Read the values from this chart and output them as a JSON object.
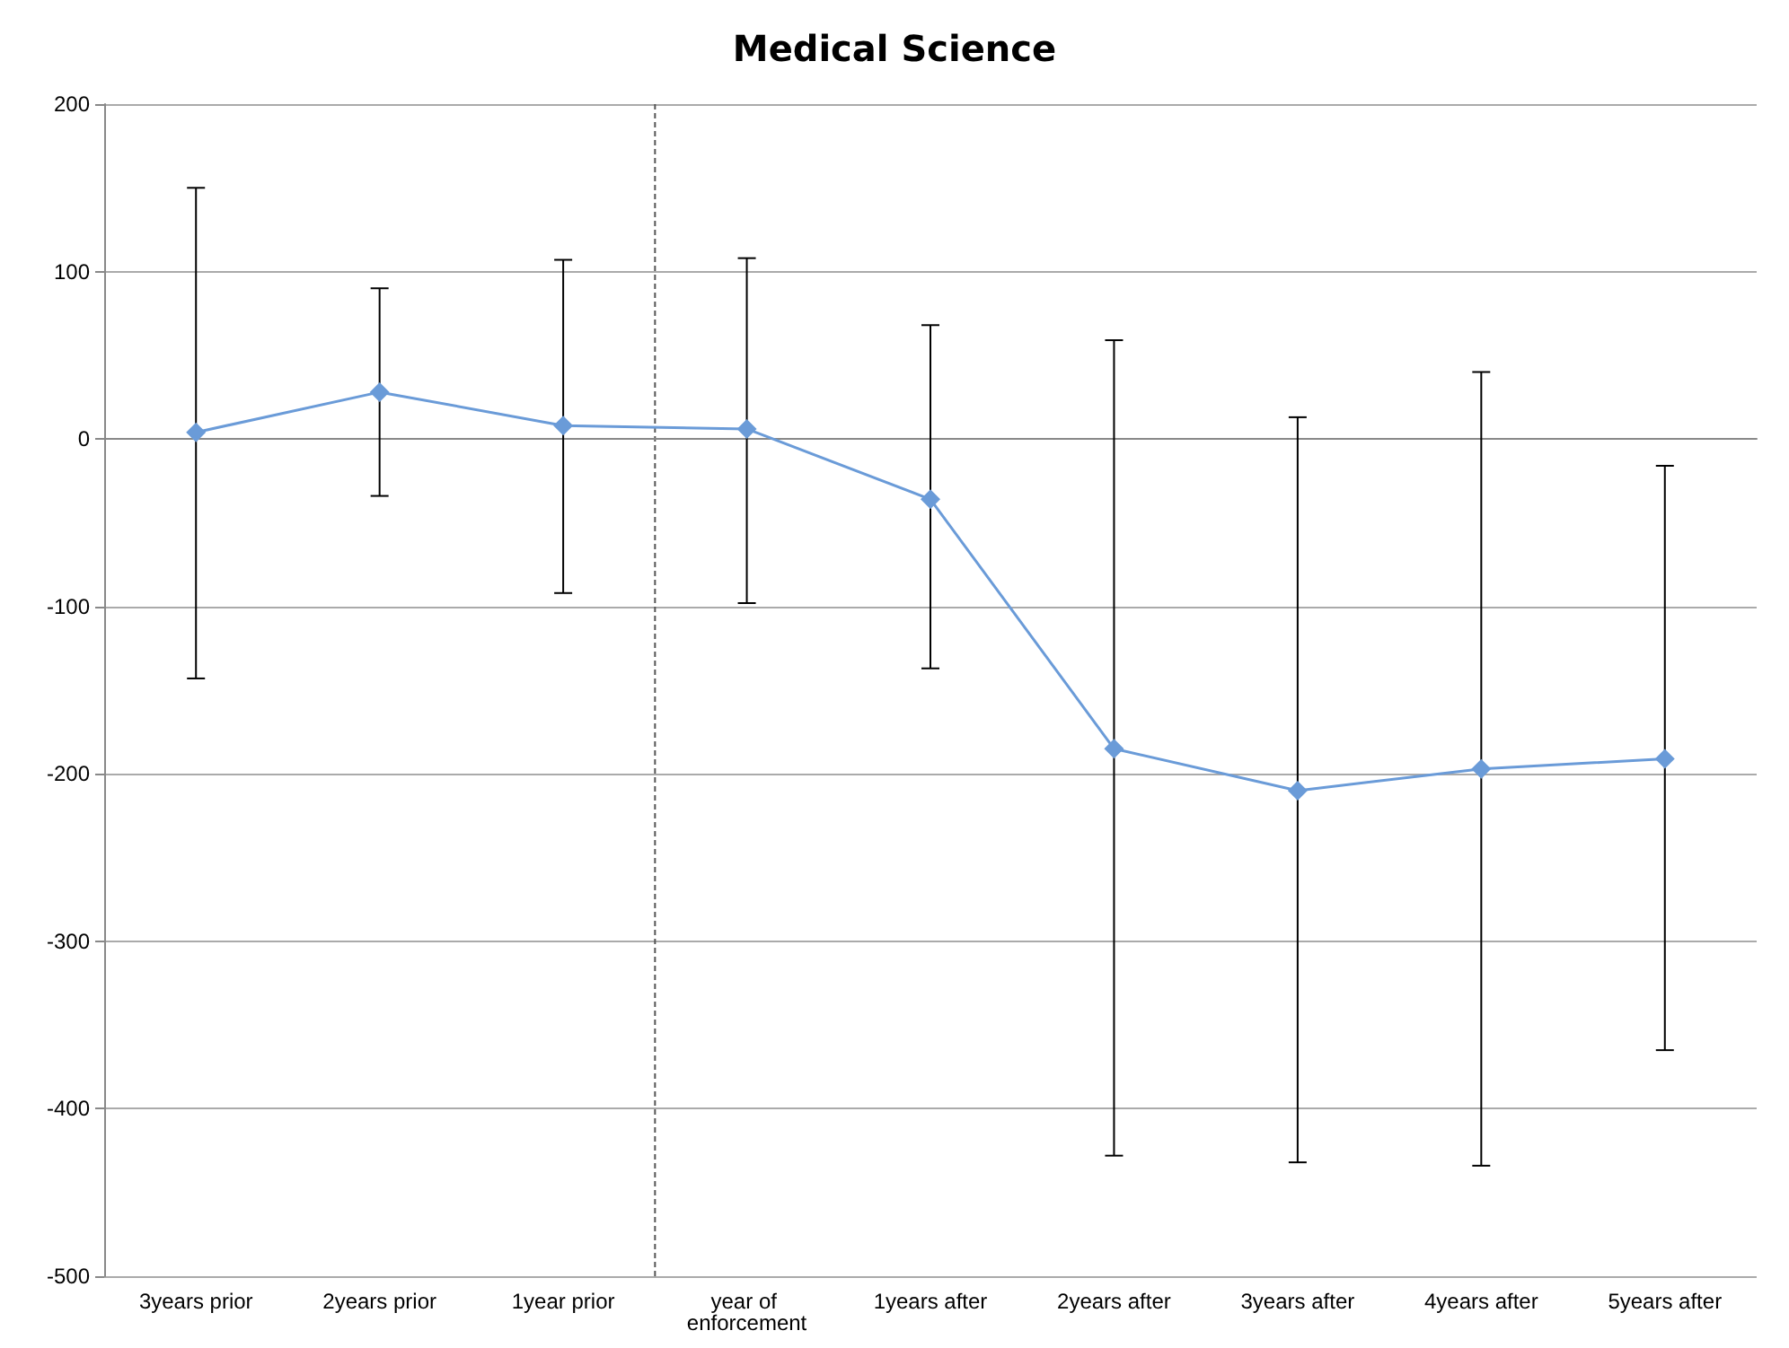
{
  "chart_data": {
    "type": "line",
    "title": "Medical Science",
    "categories": [
      "3years prior",
      "2years prior",
      "1year prior",
      "year of enforcement",
      "1years after",
      "2years after",
      "3years after",
      "4years after",
      "5years after"
    ],
    "series": [
      {
        "color": "#6a9bd8",
        "values": [
          4,
          28,
          8,
          6,
          -36,
          -185,
          -210,
          -197,
          -191
        ],
        "errors": [
          [
            -143,
            150
          ],
          [
            -34,
            90
          ],
          [
            -92,
            107
          ],
          [
            -98,
            108
          ],
          [
            -137,
            68
          ],
          [
            -428,
            59
          ],
          [
            -432,
            13
          ],
          [
            -434,
            40
          ],
          [
            -365,
            -16
          ]
        ]
      }
    ],
    "ylim": [
      -500,
      200
    ],
    "yticks": [
      -500,
      -400,
      -300,
      -200,
      -100,
      0,
      100,
      200
    ],
    "grid": "y",
    "marker": "diamond",
    "line_style": "solid",
    "ref_lines": [
      {
        "axis": "x",
        "value": "year of enforcement",
        "line_style": "dashed",
        "color": "#555555"
      }
    ]
  }
}
